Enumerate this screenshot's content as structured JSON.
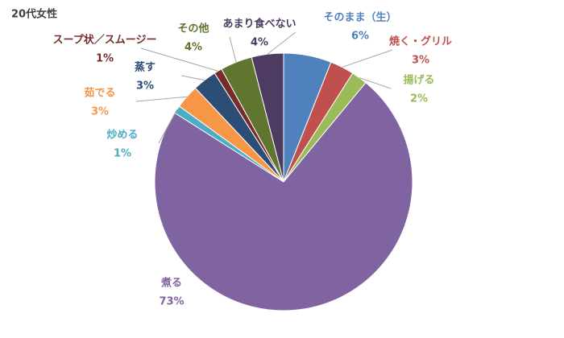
{
  "chart_data": {
    "type": "pie",
    "title": "20代女性",
    "categories": [
      "そのまま（生）",
      "焼く・グリル",
      "揚げる",
      "煮る",
      "炒める",
      "茹でる",
      "蒸す",
      "スープ状／スムージー",
      "その他",
      "あまり食べない"
    ],
    "values": [
      6,
      3,
      2,
      73,
      1,
      3,
      3,
      1,
      4,
      4
    ],
    "value_labels": [
      "6%",
      "3%",
      "2%",
      "73%",
      "1%",
      "3%",
      "3%",
      "1%",
      "4%",
      "4%"
    ],
    "colors": [
      "#4f81bd",
      "#c0504d",
      "#9bbb59",
      "#8064a2",
      "#4bacc6",
      "#f79646",
      "#2c4d75",
      "#772c2a",
      "#5f7530",
      "#4d3b62"
    ]
  }
}
